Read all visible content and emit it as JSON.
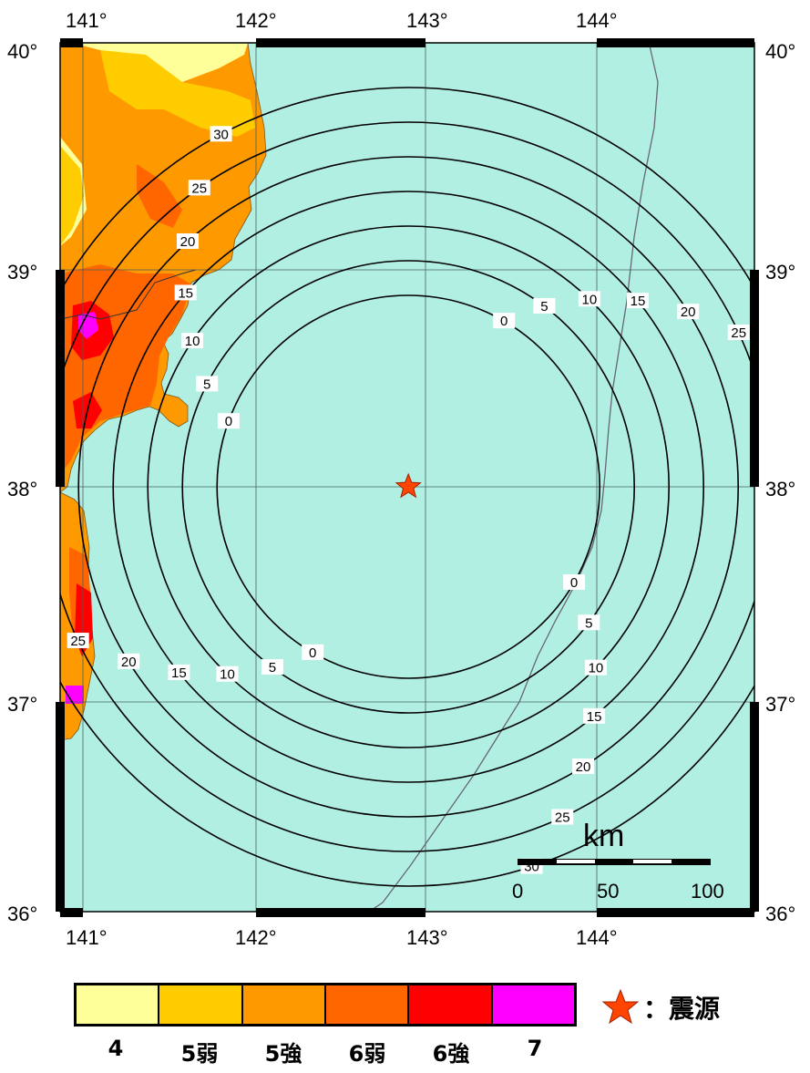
{
  "map": {
    "longitude_ticks": [
      "141°",
      "142°",
      "143°",
      "144°"
    ],
    "latitude_ticks": [
      "40°",
      "39°",
      "38°",
      "37°",
      "36°"
    ],
    "epicenter": {
      "lon": 142.9,
      "lat": 38.0
    },
    "contour_levels": [
      0,
      5,
      10,
      15,
      20,
      25,
      30
    ],
    "sea_color": "#b2efe3",
    "land_colors": {
      "4": "#ffff99",
      "5弱": "#ffcc00",
      "5強": "#ff9900",
      "6弱": "#ff6600",
      "6強": "#ff0000",
      "7": "#ff00ff"
    }
  },
  "scale_bar": {
    "unit": "km",
    "ticks": [
      "0",
      "50",
      "100"
    ]
  },
  "legend": {
    "items": [
      {
        "label": "4",
        "color": "#ffff99"
      },
      {
        "label": "5弱",
        "color": "#ffcc00"
      },
      {
        "label": "5強",
        "color": "#ff9900"
      },
      {
        "label": "6弱",
        "color": "#ff6600"
      },
      {
        "label": "6強",
        "color": "#ff0000"
      },
      {
        "label": "7",
        "color": "#ff00ff"
      }
    ],
    "epicenter_label": "：震源",
    "epicenter_icon": "star-icon",
    "epicenter_color": "#ff4500"
  }
}
